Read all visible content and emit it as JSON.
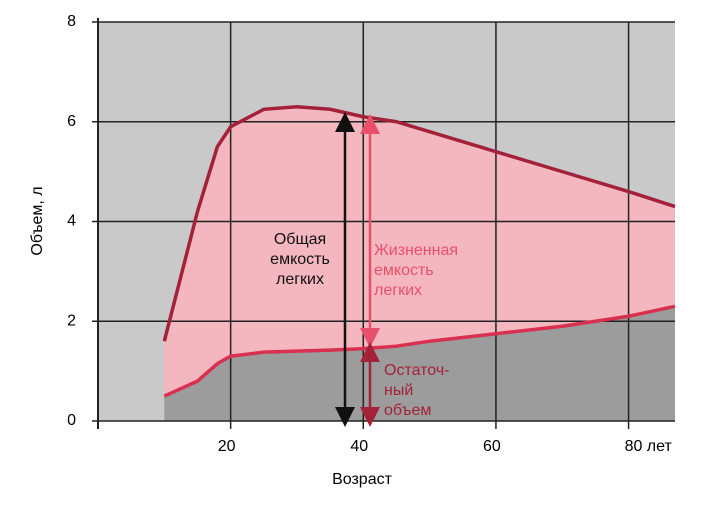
{
  "chart_data": {
    "type": "line",
    "x_label": "Возраст",
    "y_label": "Объем, л",
    "xlim": [
      0,
      87
    ],
    "ylim": [
      0,
      8
    ],
    "xticks": [
      20,
      40,
      60,
      {
        "value": 80,
        "label": "80 лет"
      }
    ],
    "yticks": [
      0,
      2,
      4,
      6,
      8
    ],
    "grid": true,
    "x": [
      10,
      15,
      18,
      20,
      25,
      30,
      35,
      40,
      45,
      50,
      60,
      70,
      80,
      87
    ],
    "series": [
      {
        "color": "#a3223a",
        "values": [
          1.6,
          4.2,
          5.5,
          5.9,
          6.25,
          6.3,
          6.25,
          6.1,
          6.0,
          5.8,
          5.4,
          5.0,
          4.6,
          4.3
        ]
      },
      {
        "color": "#d9304f",
        "values": [
          0.5,
          0.8,
          1.15,
          1.3,
          1.38,
          1.4,
          1.42,
          1.45,
          1.5,
          1.6,
          1.75,
          1.9,
          2.1,
          2.3
        ]
      }
    ],
    "annotations": [
      {
        "lines": [
          "Общая",
          "емкость",
          "легких"
        ],
        "color": "#111111"
      },
      {
        "lines": [
          "Жизненная",
          "емкость",
          "легких"
        ],
        "color": "#e8506a"
      },
      {
        "lines": [
          "Остаточ-",
          "ный",
          "объем"
        ],
        "color": "#a3223a"
      }
    ]
  }
}
